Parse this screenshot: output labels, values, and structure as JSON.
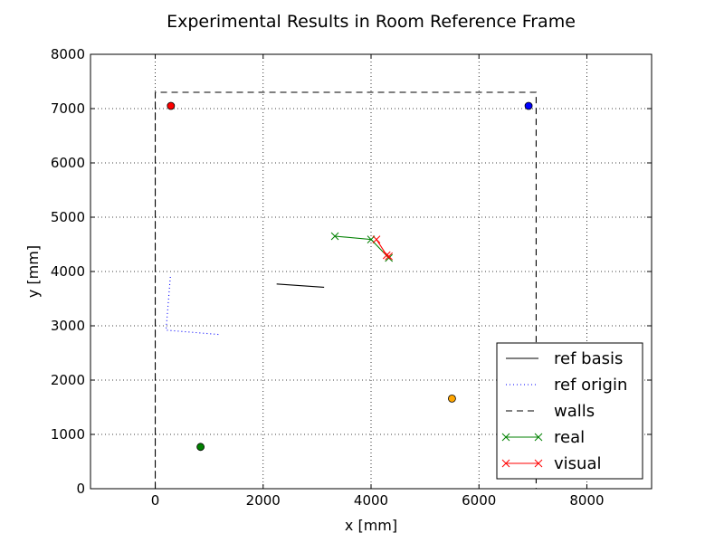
{
  "chart_data": {
    "type": "line",
    "title": "Experimental Results in Room Reference Frame",
    "xlabel": "x [mm]",
    "ylabel": "y [mm]",
    "xlim": [
      -1200,
      9200
    ],
    "ylim": [
      0,
      8000
    ],
    "xticks": [
      0,
      2000,
      4000,
      6000,
      8000
    ],
    "yticks": [
      0,
      1000,
      2000,
      3000,
      4000,
      5000,
      6000,
      7000,
      8000
    ],
    "grid": true,
    "legend_position": "lower right",
    "series": [
      {
        "name": "ref basis",
        "color": "#000000",
        "style": "solid",
        "marker": "none",
        "x": [
          2250,
          3130
        ],
        "y": [
          3770,
          3710
        ]
      },
      {
        "name": "ref origin",
        "color": "#0000ff",
        "style": "dotted",
        "marker": "none",
        "x": [
          280,
          200,
          1180
        ],
        "y": [
          3900,
          2920,
          2840
        ]
      },
      {
        "name": "walls",
        "color": "#000000",
        "style": "dashed",
        "marker": "none",
        "x": [
          0,
          0,
          7060,
          7060
        ],
        "y": [
          0,
          7300,
          7300,
          0
        ]
      },
      {
        "name": "real",
        "color": "#008000",
        "style": "solid",
        "marker": "x",
        "x": [
          3330,
          4000,
          4330
        ],
        "y": [
          4650,
          4590,
          4250
        ]
      },
      {
        "name": "visual",
        "color": "#ff0000",
        "style": "solid",
        "marker": "x",
        "x": [
          4100,
          4290,
          4330
        ],
        "y": [
          4590,
          4300,
          4280
        ]
      }
    ],
    "points": [
      {
        "x": 290,
        "y": 7050,
        "color": "#ff0000"
      },
      {
        "x": 6920,
        "y": 7050,
        "color": "#0000ff"
      },
      {
        "x": 5500,
        "y": 1660,
        "color": "#ffa500"
      },
      {
        "x": 840,
        "y": 770,
        "color": "#008000"
      }
    ]
  }
}
